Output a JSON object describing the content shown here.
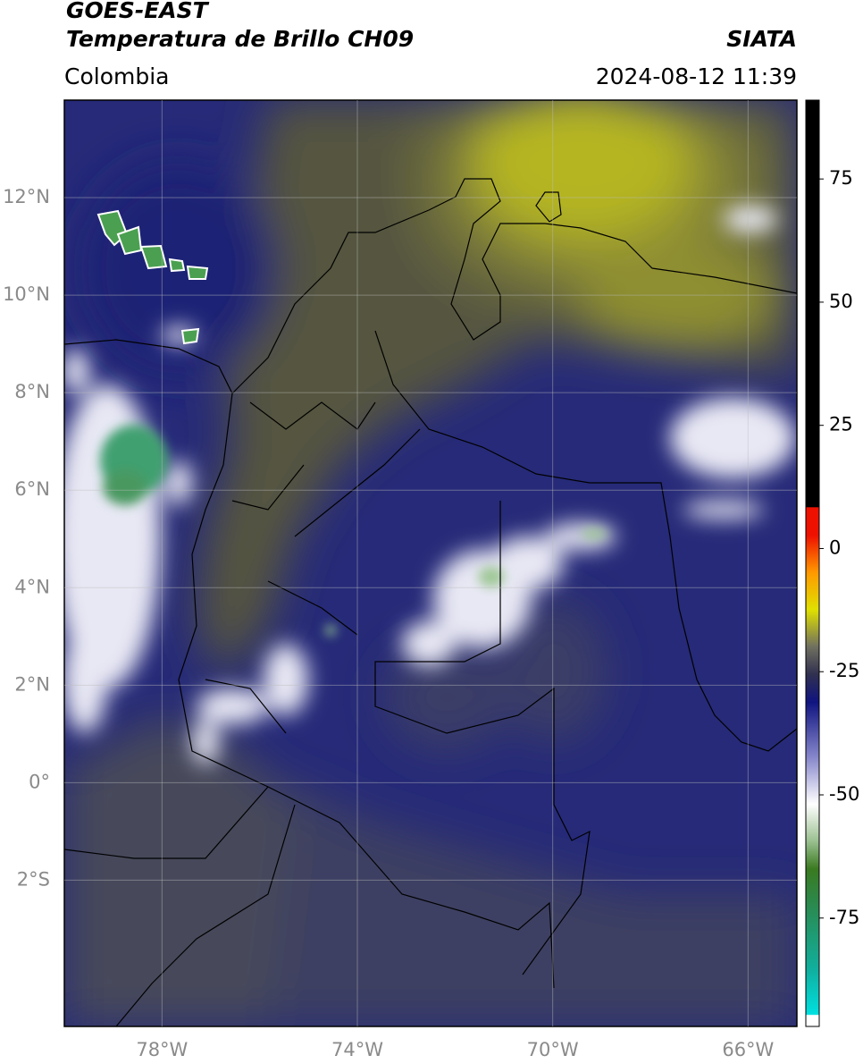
{
  "header": {
    "title": "GOES-EAST",
    "subtitle": "Temperatura de Brillo CH09",
    "source": "SIATA",
    "region": "Colombia",
    "datetime": "2024-08-12 11:39"
  },
  "map": {
    "lonlim": [
      -80,
      -65
    ],
    "latlim": [
      -5,
      14
    ],
    "lon_ticks": [
      {
        "value": -78,
        "label": "78°W"
      },
      {
        "value": -74,
        "label": "74°W"
      },
      {
        "value": -70,
        "label": "70°W"
      },
      {
        "value": -66,
        "label": "66°W"
      }
    ],
    "lat_ticks": [
      {
        "value": 12,
        "label": "12°N"
      },
      {
        "value": 10,
        "label": "10°N"
      },
      {
        "value": 8,
        "label": "8°N"
      },
      {
        "value": 6,
        "label": "6°N"
      },
      {
        "value": 4,
        "label": "4°N"
      },
      {
        "value": 2,
        "label": "2°N"
      },
      {
        "value": 0,
        "label": "0°"
      },
      {
        "value": -2,
        "label": "2°S"
      }
    ]
  },
  "colorbar": {
    "lim": [
      -97,
      91
    ],
    "ticks": [
      75,
      50,
      25,
      0,
      -25,
      -50,
      -75
    ]
  }
}
